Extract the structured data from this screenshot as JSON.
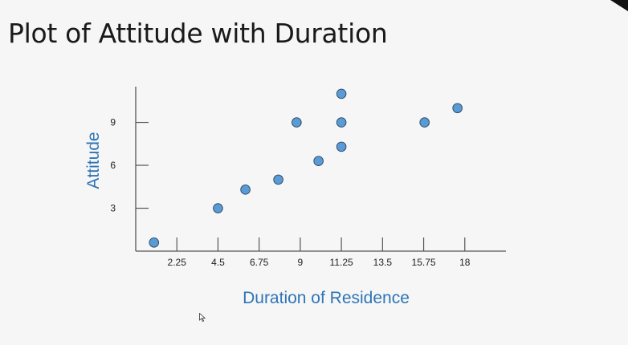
{
  "slide": {
    "title": "Plot of Attitude with Duration"
  },
  "colors": {
    "point_fill": "#5b9bd5",
    "point_stroke": "#2f4f6f",
    "axis_title": "#2e75b6",
    "axis_line": "#555555"
  },
  "icons": {
    "cursor": "pointer-cursor-icon"
  },
  "chart_data": {
    "type": "scatter",
    "title": "",
    "xlabel": "Duration of Residence",
    "ylabel": "Attitude",
    "xlim": [
      0,
      20.25
    ],
    "ylim": [
      0,
      11.5
    ],
    "x_ticks": [
      2.25,
      4.5,
      6.75,
      9,
      11.25,
      13.5,
      15.75,
      18
    ],
    "x_tick_labels": [
      "2.25",
      "4.5",
      "6.75",
      "9",
      "11.25",
      "13.5",
      "15.75",
      "18"
    ],
    "y_ticks": [
      3,
      6,
      9
    ],
    "y_tick_labels": [
      "3",
      "6",
      "9"
    ],
    "grid": false,
    "series": [
      {
        "points": [
          {
            "x": 1.0,
            "y": 0.6
          },
          {
            "x": 4.5,
            "y": 3.0
          },
          {
            "x": 6.0,
            "y": 4.3
          },
          {
            "x": 7.8,
            "y": 5.0
          },
          {
            "x": 8.8,
            "y": 9.0
          },
          {
            "x": 10.0,
            "y": 6.3
          },
          {
            "x": 11.25,
            "y": 7.3
          },
          {
            "x": 11.25,
            "y": 9.0
          },
          {
            "x": 11.25,
            "y": 11.0
          },
          {
            "x": 15.8,
            "y": 9.0
          },
          {
            "x": 17.6,
            "y": 10.0
          }
        ]
      }
    ]
  }
}
